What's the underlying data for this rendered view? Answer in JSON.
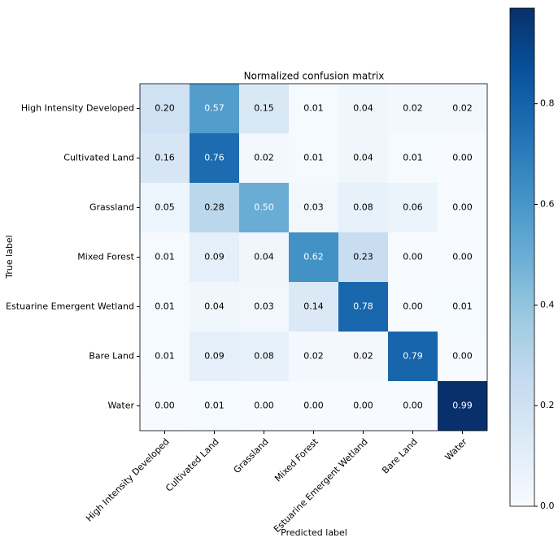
{
  "chart_data": {
    "type": "heatmap",
    "title": "Normalized confusion matrix",
    "xlabel": "Predicted label",
    "ylabel": "True label",
    "x_categories": [
      "High Intensity Developed",
      "Cultivated Land",
      "Grassland",
      "Mixed Forest",
      "Estuarine Emergent Wetland",
      "Bare Land",
      "Water"
    ],
    "y_categories": [
      "High Intensity Developed",
      "Cultivated Land",
      "Grassland",
      "Mixed Forest",
      "Estuarine Emergent Wetland",
      "Bare Land",
      "Water"
    ],
    "values": [
      [
        0.2,
        0.57,
        0.15,
        0.01,
        0.04,
        0.02,
        0.02
      ],
      [
        0.16,
        0.76,
        0.02,
        0.01,
        0.04,
        0.01,
        0.0
      ],
      [
        0.05,
        0.28,
        0.5,
        0.03,
        0.08,
        0.06,
        0.0
      ],
      [
        0.01,
        0.09,
        0.04,
        0.62,
        0.23,
        0.0,
        0.0
      ],
      [
        0.01,
        0.04,
        0.03,
        0.14,
        0.78,
        0.0,
        0.01
      ],
      [
        0.01,
        0.09,
        0.08,
        0.02,
        0.02,
        0.79,
        0.0
      ],
      [
        0.0,
        0.01,
        0.0,
        0.0,
        0.0,
        0.0,
        0.99
      ]
    ],
    "value_labels": [
      [
        "0.20",
        "0.57",
        "0.15",
        "0.01",
        "0.04",
        "0.02",
        "0.02"
      ],
      [
        "0.16",
        "0.76",
        "0.02",
        "0.01",
        "0.04",
        "0.01",
        "0.00"
      ],
      [
        "0.05",
        "0.28",
        "0.50",
        "0.03",
        "0.08",
        "0.06",
        "0.00"
      ],
      [
        "0.01",
        "0.09",
        "0.04",
        "0.62",
        "0.23",
        "0.00",
        "0.00"
      ],
      [
        "0.01",
        "0.04",
        "0.03",
        "0.14",
        "0.78",
        "0.00",
        "0.01"
      ],
      [
        "0.01",
        "0.09",
        "0.08",
        "0.02",
        "0.02",
        "0.79",
        "0.00"
      ],
      [
        "0.00",
        "0.01",
        "0.00",
        "0.00",
        "0.00",
        "0.00",
        "0.99"
      ]
    ],
    "colormap": "Blues",
    "clim": [
      0,
      0.99
    ],
    "cticks": [
      {
        "value": 0,
        "label": "0.0"
      },
      0.2,
      0.4,
      0.6,
      0.8
    ]
  }
}
